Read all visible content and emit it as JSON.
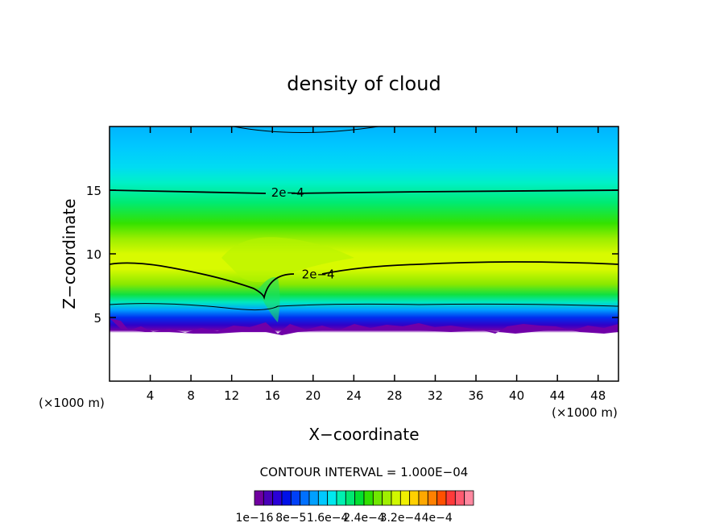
{
  "chart_data": {
    "type": "heatmap",
    "title": "density of cloud",
    "xlabel": "X−coordinate",
    "ylabel": "Z−coordinate",
    "x_unit": "(×1000 m)",
    "y_unit": "(×1000 m)",
    "xlim": [
      0,
      50
    ],
    "ylim": [
      0,
      20
    ],
    "x_ticks": [
      4,
      8,
      12,
      16,
      20,
      24,
      28,
      32,
      36,
      40,
      44,
      48
    ],
    "y_ticks": [
      5,
      10,
      15
    ],
    "contour_interval_label": "CONTOUR INTERVAL = 1.000E−04",
    "contour_labels": [
      {
        "text": "2e−4",
        "x": 17.5,
        "z": 14.8
      },
      {
        "text": "2e−4",
        "x": 20.5,
        "z": 8.4
      }
    ],
    "colorbar_labels": [
      "1e−16",
      "8e−5",
      "1.6e−4",
      "2.4e−4",
      "3.2e−4",
      "4e−4"
    ],
    "colorbar_colors": [
      "#7000a0",
      "#4800b8",
      "#2a00d8",
      "#0010e8",
      "#0040f8",
      "#0070ff",
      "#00a0ff",
      "#00c8ff",
      "#00e8ee",
      "#00f0b0",
      "#00e870",
      "#00e030",
      "#30e000",
      "#70e800",
      "#a0f000",
      "#d0f800",
      "#f0f000",
      "#ffd000",
      "#ffa800",
      "#ff8000",
      "#ff5000",
      "#ff3a3a",
      "#ff5a70",
      "#ff88a0"
    ]
  }
}
